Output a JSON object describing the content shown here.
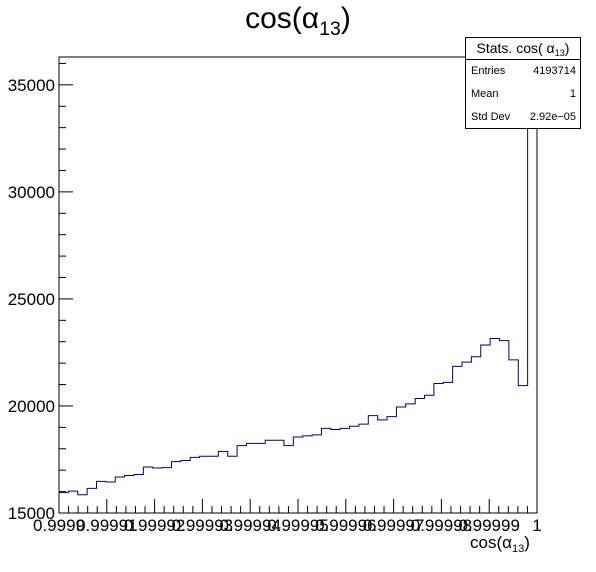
{
  "chart_data": {
    "type": "histogram",
    "title_main": "cos(α",
    "title_sub": "13",
    "title_close": ")",
    "xlabel_main": "cos(α",
    "xlabel_sub": "13",
    "xlabel_close": ")",
    "ylim": [
      15000,
      36300
    ],
    "xlim": [
      0.9999,
      1.0
    ],
    "y_ticks": [
      "15000",
      "20000",
      "25000",
      "30000",
      "35000"
    ],
    "y_tick_values": [
      15000,
      20000,
      25000,
      30000,
      35000
    ],
    "x_tick_labels": [
      "0.9999",
      "0.99991",
      "0.99992",
      "0.99993",
      "0.99994",
      "0.99995",
      "0.99996",
      "0.99997",
      "0.99998",
      "0.99999",
      "1"
    ],
    "line_color": "#000080",
    "values": [
      15950,
      16020,
      15850,
      16150,
      16480,
      16450,
      16680,
      16750,
      16800,
      17150,
      17100,
      17120,
      17400,
      17450,
      17600,
      17650,
      17650,
      17880,
      17650,
      18150,
      18250,
      18250,
      18400,
      18400,
      18150,
      18550,
      18600,
      18650,
      18950,
      18900,
      18950,
      19050,
      19150,
      19550,
      19350,
      19500,
      19950,
      20100,
      20350,
      20500,
      21050,
      21100,
      21850,
      22050,
      22300,
      22850,
      23150,
      23050,
      22150,
      20950,
      36300
    ]
  },
  "stats": {
    "title_main": "Stats. cos( α",
    "title_sub": "13",
    "title_close": ")",
    "entries_label": "Entries",
    "entries_value": "4193714",
    "mean_label": "Mean",
    "mean_value": "1",
    "stddev_label": "Std Dev",
    "stddev_value": "2.92e−05"
  }
}
